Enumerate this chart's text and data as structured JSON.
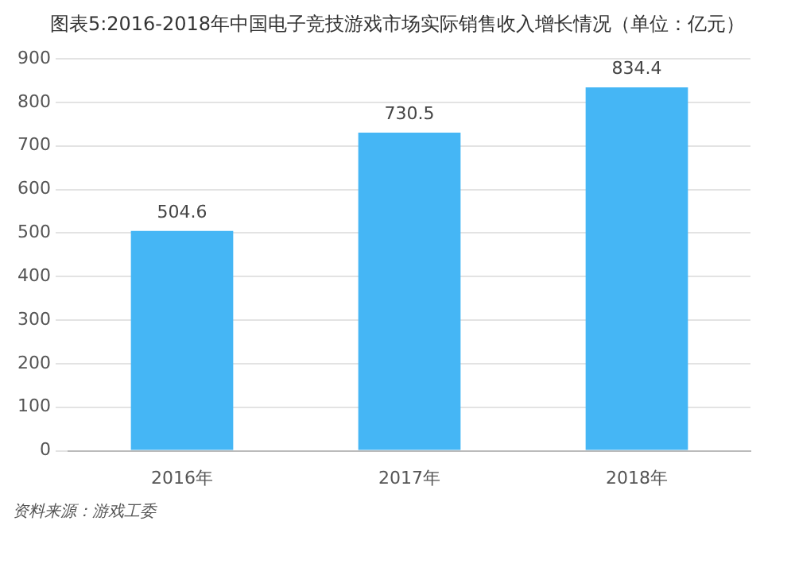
{
  "chart_data": {
    "type": "bar",
    "title": "图表5:2016-2018年中国电子竞技游戏市场实际销售收入增长情况（单位：亿元）",
    "categories": [
      "2016年",
      "2017年",
      "2018年"
    ],
    "values": [
      504.6,
      730.5,
      834.4
    ],
    "color": "#45b6f5",
    "ylim": [
      0,
      900
    ],
    "yticks": [
      0,
      100,
      200,
      300,
      400,
      500,
      600,
      700,
      800,
      900
    ],
    "grid": "y",
    "data_labels": true,
    "annotations": [
      "资料来源：游戏工委"
    ]
  }
}
